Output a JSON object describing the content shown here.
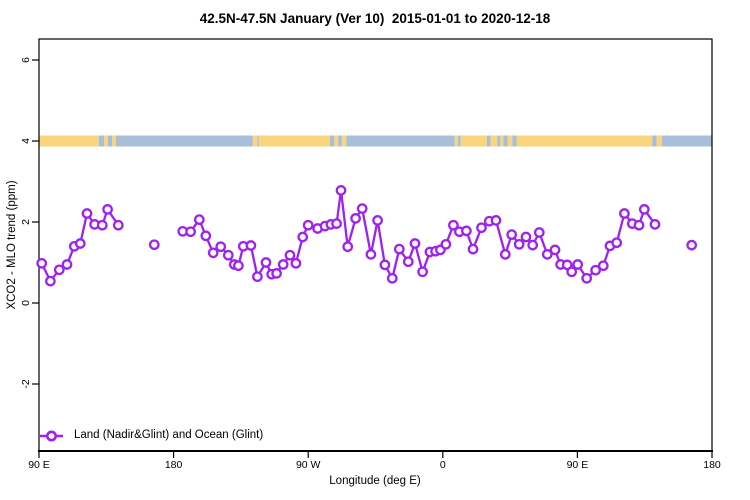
{
  "chart_data": {
    "type": "line",
    "title": "42.5N-47.5N January (Ver 10)  2015-01-01 to 2020-12-18",
    "xlabel": "Longitude (deg E)",
    "ylabel": "XCO2 - MLO trend (ppm)",
    "xlim": [
      90,
      540
    ],
    "ylim": [
      -3.65,
      6.5
    ],
    "grid": false,
    "x_ticks": [
      {
        "lon": 90,
        "label": "90 E"
      },
      {
        "lon": 180,
        "label": "180"
      },
      {
        "lon": 270,
        "label": "90 W"
      },
      {
        "lon": 360,
        "label": "0"
      },
      {
        "lon": 450,
        "label": "90 E"
      },
      {
        "lon": 540,
        "label": "180"
      }
    ],
    "y_ticks": [
      {
        "value": 6,
        "label": "6"
      },
      {
        "value": 4,
        "label": "4"
      },
      {
        "value": 2,
        "label": "2"
      },
      {
        "value": 0,
        "label": "0"
      },
      {
        "value": -2,
        "label": "-2"
      }
    ],
    "legend": {
      "position": "bottom-left",
      "entries": [
        {
          "label": "Land (Nadir&Glint) and Ocean (Glint)",
          "color": "#A020F0",
          "marker": "open-circle-on-line"
        }
      ]
    },
    "series": [
      {
        "name": "Land (Nadir&Glint) and Ocean (Glint)",
        "color": "#A020F0",
        "marker": "open-circle",
        "segments": [
          [
            [
              91.8,
              0.98
            ],
            [
              97.6,
              0.54
            ],
            [
              103.6,
              0.82
            ],
            [
              108.7,
              0.95
            ],
            [
              113.6,
              1.4
            ],
            [
              117.6,
              1.47
            ],
            [
              122.1,
              2.21
            ],
            [
              127.2,
              1.94
            ],
            [
              132.3,
              1.92
            ],
            [
              135.9,
              2.31
            ],
            [
              143.0,
              1.92
            ]
          ],
          [
            [
              167.1,
              1.44
            ]
          ],
          [
            [
              186.1,
              1.77
            ],
            [
              191.4,
              1.76
            ],
            [
              197.2,
              2.06
            ],
            [
              201.5,
              1.66
            ],
            [
              206.5,
              1.24
            ],
            [
              211.5,
              1.39
            ],
            [
              216.6,
              1.18
            ],
            [
              220.6,
              0.95
            ],
            [
              223.3,
              0.92
            ],
            [
              226.6,
              1.4
            ],
            [
              231.7,
              1.42
            ],
            [
              236.0,
              0.65
            ],
            [
              241.8,
              1.0
            ],
            [
              245.6,
              0.71
            ],
            [
              248.9,
              0.73
            ],
            [
              253.3,
              0.95
            ],
            [
              257.8,
              1.18
            ],
            [
              261.8,
              0.98
            ],
            [
              266.3,
              1.63
            ],
            [
              270.0,
              1.92
            ],
            [
              276.3,
              1.84
            ],
            [
              281.2,
              1.9
            ],
            [
              285.2,
              1.94
            ],
            [
              289.0,
              1.96
            ],
            [
              291.9,
              2.78
            ],
            [
              296.4,
              1.39
            ],
            [
              301.7,
              2.09
            ],
            [
              306.1,
              2.33
            ],
            [
              311.9,
              1.2
            ],
            [
              316.4,
              2.04
            ],
            [
              321.3,
              0.94
            ],
            [
              326.2,
              0.61
            ],
            [
              330.9,
              1.33
            ],
            [
              336.9,
              1.02
            ],
            [
              341.4,
              1.47
            ],
            [
              346.5,
              0.77
            ],
            [
              351.4,
              1.26
            ],
            [
              355.2,
              1.28
            ],
            [
              358.4,
              1.31
            ],
            [
              362.1,
              1.45
            ],
            [
              367.1,
              1.92
            ],
            [
              371.1,
              1.76
            ],
            [
              375.8,
              1.78
            ],
            [
              380.2,
              1.33
            ],
            [
              385.9,
              1.86
            ],
            [
              391.1,
              2.02
            ],
            [
              395.6,
              2.04
            ],
            [
              401.8,
              1.2
            ],
            [
              406.1,
              1.69
            ],
            [
              411.1,
              1.45
            ],
            [
              415.6,
              1.63
            ],
            [
              420.1,
              1.43
            ],
            [
              424.5,
              1.74
            ],
            [
              429.9,
              1.2
            ],
            [
              435.0,
              1.31
            ],
            [
              438.8,
              0.95
            ],
            [
              443.2,
              0.94
            ],
            [
              446.2,
              0.77
            ],
            [
              450.2,
              0.95
            ],
            [
              456.2,
              0.61
            ],
            [
              462.2,
              0.81
            ],
            [
              467.3,
              0.92
            ],
            [
              471.8,
              1.41
            ],
            [
              476.3,
              1.49
            ],
            [
              481.4,
              2.21
            ],
            [
              486.7,
              1.96
            ],
            [
              491.2,
              1.92
            ],
            [
              494.7,
              2.31
            ],
            [
              501.9,
              1.94
            ]
          ],
          [
            [
              526.4,
              1.43
            ]
          ]
        ]
      }
    ],
    "surface_type_band": {
      "value": 4,
      "colors": {
        "land": "#FAD57E",
        "ocean": "#A9BFD9"
      },
      "segments": [
        {
          "from": 90,
          "to": 130,
          "type": "land"
        },
        {
          "from": 130,
          "to": 133.5,
          "type": "ocean"
        },
        {
          "from": 133.5,
          "to": 136,
          "type": "land"
        },
        {
          "from": 136,
          "to": 139,
          "type": "ocean"
        },
        {
          "from": 139,
          "to": 141.5,
          "type": "land"
        },
        {
          "from": 141.5,
          "to": 233,
          "type": "ocean"
        },
        {
          "from": 233,
          "to": 236,
          "type": "land"
        },
        {
          "from": 236,
          "to": 237,
          "type": "ocean"
        },
        {
          "from": 237,
          "to": 284.5,
          "type": "land"
        },
        {
          "from": 284.5,
          "to": 287.5,
          "type": "ocean"
        },
        {
          "from": 287.5,
          "to": 290,
          "type": "land"
        },
        {
          "from": 290,
          "to": 292.5,
          "type": "ocean"
        },
        {
          "from": 292.5,
          "to": 295.5,
          "type": "land"
        },
        {
          "from": 295.5,
          "to": 368,
          "type": "ocean"
        },
        {
          "from": 368,
          "to": 370,
          "type": "land"
        },
        {
          "from": 370,
          "to": 372,
          "type": "ocean"
        },
        {
          "from": 372,
          "to": 389.5,
          "type": "land"
        },
        {
          "from": 389.5,
          "to": 392,
          "type": "ocean"
        },
        {
          "from": 392,
          "to": 396.5,
          "type": "land"
        },
        {
          "from": 396.5,
          "to": 398.5,
          "type": "ocean"
        },
        {
          "from": 398.5,
          "to": 400.5,
          "type": "land"
        },
        {
          "from": 400.5,
          "to": 403.5,
          "type": "ocean"
        },
        {
          "from": 403.5,
          "to": 406.5,
          "type": "land"
        },
        {
          "from": 406.5,
          "to": 409.5,
          "type": "ocean"
        },
        {
          "from": 409.5,
          "to": 500,
          "type": "land"
        },
        {
          "from": 500,
          "to": 503,
          "type": "ocean"
        },
        {
          "from": 503,
          "to": 506.5,
          "type": "land"
        },
        {
          "from": 506.5,
          "to": 540,
          "type": "ocean"
        }
      ]
    }
  }
}
